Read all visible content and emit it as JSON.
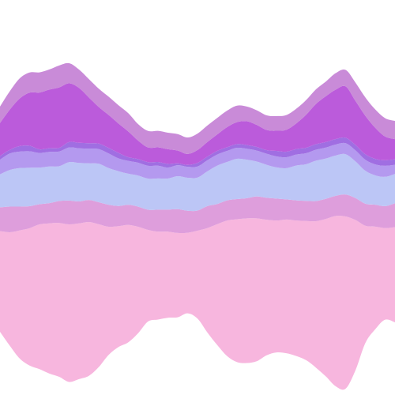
{
  "chart_data": {
    "type": "area",
    "stacked": true,
    "baseline": "wiggle",
    "smooth": true,
    "grid": false,
    "legend": "none",
    "title": "",
    "xlabel": "",
    "ylabel": "",
    "x": [
      0,
      1,
      2,
      3,
      4,
      5,
      6,
      7,
      8,
      9,
      10,
      11,
      12,
      13,
      14,
      15,
      16,
      17,
      18,
      19,
      20,
      21,
      22,
      23,
      24,
      25,
      26,
      27,
      28,
      29,
      30,
      31,
      32,
      33,
      34,
      35,
      36,
      37,
      38,
      39,
      40
    ],
    "series": [
      {
        "color": "#f7b6de",
        "values": [
          55,
          62,
          70,
          75,
          79,
          82,
          84,
          86,
          85,
          84,
          78,
          70,
          66,
          64,
          58,
          50,
          48,
          47,
          46,
          44,
          48,
          57,
          66,
          74,
          78,
          79,
          78,
          74,
          72,
          73,
          74,
          76,
          80,
          86,
          93,
          94,
          82,
          64,
          56,
          50,
          52
        ]
      },
      {
        "color": "#de9edc",
        "values": [
          13,
          14,
          13,
          12,
          11,
          11,
          12,
          13,
          12,
          12,
          12,
          12,
          11,
          11,
          11,
          11,
          12,
          12,
          13,
          12,
          11,
          12,
          11,
          11,
          11,
          11,
          12,
          12,
          12,
          11,
          11,
          11,
          11,
          11,
          11,
          12,
          12,
          12,
          12,
          12,
          13
        ]
      },
      {
        "color": "#bcc6f6",
        "values": [
          18,
          20,
          21,
          21,
          20,
          20,
          19,
          21,
          21,
          20,
          21,
          20,
          19,
          17,
          17,
          17,
          17,
          17,
          18,
          18,
          18,
          19,
          21,
          21,
          22,
          21,
          19,
          18,
          17,
          17,
          19,
          20,
          22,
          22,
          22,
          22,
          20,
          18,
          16,
          16,
          16
        ]
      },
      {
        "color": "#b499ef",
        "values": [
          8,
          9,
          9,
          9,
          8,
          8,
          8,
          8,
          8,
          8,
          8,
          8,
          7,
          7,
          7,
          7,
          7,
          6,
          6,
          6,
          6,
          6,
          6,
          6,
          6,
          6,
          6,
          6,
          6,
          6,
          6,
          6,
          6,
          6,
          6,
          6,
          6,
          6,
          6,
          6,
          5
        ]
      },
      {
        "color": "#a06ee2",
        "values": [
          2,
          2,
          3,
          3,
          2,
          2,
          2,
          3,
          3,
          3,
          3,
          3,
          3,
          2,
          2,
          2,
          2,
          2,
          1,
          1,
          2,
          2,
          2,
          2,
          2,
          2,
          2,
          2,
          3,
          3,
          3,
          3,
          3,
          3,
          3,
          3,
          3,
          3,
          3,
          3,
          3
        ]
      },
      {
        "color": "#bb5bdb",
        "values": [
          18,
          22,
          26,
          29,
          31,
          32,
          33,
          32,
          30,
          25,
          20,
          18,
          16,
          14,
          10,
          8,
          8,
          8,
          7,
          6,
          7,
          8,
          9,
          11,
          12,
          13,
          12,
          11,
          11,
          12,
          14,
          18,
          22,
          25,
          27,
          28,
          24,
          21,
          17,
          13,
          11
        ]
      },
      {
        "color": "#c98bd8",
        "values": [
          9,
          10,
          11,
          11,
          11,
          11,
          12,
          11,
          10,
          10,
          10,
          10,
          10,
          10,
          9,
          9,
          9,
          9,
          9,
          9,
          9,
          9,
          9,
          9,
          9,
          8,
          8,
          8,
          8,
          8,
          8,
          8,
          8,
          8,
          9,
          9,
          10,
          10,
          10,
          10,
          10
        ]
      }
    ]
  }
}
